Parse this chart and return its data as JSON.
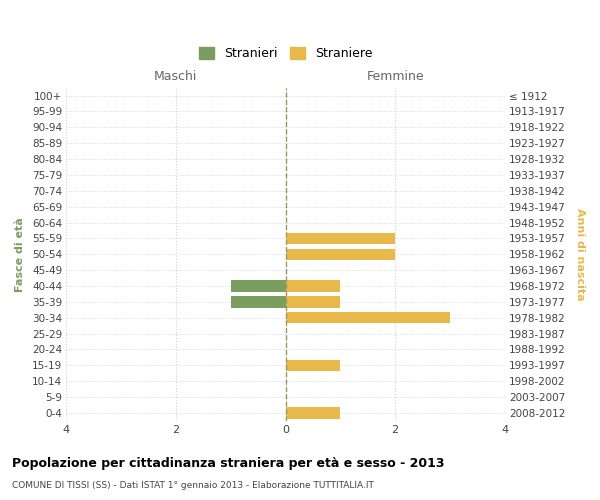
{
  "age_groups": [
    "0-4",
    "5-9",
    "10-14",
    "15-19",
    "20-24",
    "25-29",
    "30-34",
    "35-39",
    "40-44",
    "45-49",
    "50-54",
    "55-59",
    "60-64",
    "65-69",
    "70-74",
    "75-79",
    "80-84",
    "85-89",
    "90-94",
    "95-99",
    "100+"
  ],
  "birth_years": [
    "2008-2012",
    "2003-2007",
    "1998-2002",
    "1993-1997",
    "1988-1992",
    "1983-1987",
    "1978-1982",
    "1973-1977",
    "1968-1972",
    "1963-1967",
    "1958-1962",
    "1953-1957",
    "1948-1952",
    "1943-1947",
    "1938-1942",
    "1933-1937",
    "1928-1932",
    "1923-1927",
    "1918-1922",
    "1913-1917",
    "≤ 1912"
  ],
  "males": [
    0,
    0,
    0,
    0,
    0,
    0,
    0,
    1,
    1,
    0,
    0,
    0,
    0,
    0,
    0,
    0,
    0,
    0,
    0,
    0,
    0
  ],
  "females": [
    1,
    0,
    0,
    1,
    0,
    0,
    3,
    1,
    1,
    0,
    2,
    2,
    0,
    0,
    0,
    0,
    0,
    0,
    0,
    0,
    0
  ],
  "male_color": "#7A9E5E",
  "female_color": "#E8B84B",
  "title": "Popolazione per cittadinanza straniera per età e sesso - 2013",
  "subtitle": "COMUNE DI TISSI (SS) - Dati ISTAT 1° gennaio 2013 - Elaborazione TUTTITALIA.IT",
  "label_left": "Maschi",
  "label_right": "Femmine",
  "ylabel_left": "Fasce di età",
  "ylabel_right": "Anni di nascita",
  "legend_males": "Stranieri",
  "legend_females": "Straniere",
  "xlim": 4,
  "background_color": "#ffffff",
  "grid_color": "#d0d0d0",
  "bar_height": 0.72
}
